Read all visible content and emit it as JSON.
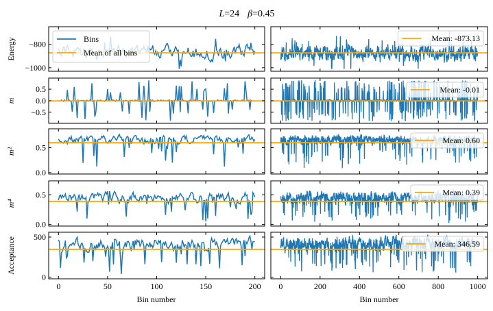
{
  "colors": {
    "series": "#1f77b4",
    "mean": "#ffa500",
    "axes": "#000000",
    "legend_edge": "#cccccc"
  },
  "chart_data": {
    "type": "line",
    "title": "L = 24   β = 0.45",
    "title_parts": {
      "L_symbol": "L",
      "L_value": "24",
      "beta_symbol": "β",
      "beta_value": "0.45"
    },
    "xlabel": "Bin number",
    "left_xlim": [
      -10,
      210
    ],
    "left_xticks": [
      0,
      50,
      100,
      150,
      200
    ],
    "right_xlim": [
      -50,
      1050
    ],
    "right_xticks": [
      0,
      200,
      400,
      600,
      800,
      1000
    ],
    "legend_main": {
      "series": "Bins",
      "mean": "Mean of all bins",
      "location": "upper left"
    },
    "rows": [
      {
        "ylabel": "Energy",
        "ylim": [
          -1030,
          -650
        ],
        "yticks": [
          -1000,
          -800
        ],
        "ytick_labels": [
          "−1000",
          "−800"
        ],
        "mean": -873.13,
        "mean_label": "Mean: -873.13",
        "seed": 11,
        "center": -873,
        "amp": 55,
        "spike_prob": 0.08,
        "spike_amp": 140,
        "bound_lo": -1010,
        "bound_hi": -680,
        "style": "energy"
      },
      {
        "ylabel": "m",
        "ylim": [
          -0.98,
          0.98
        ],
        "yticks": [
          -0.5,
          0.0,
          0.5
        ],
        "ytick_labels": [
          "−0.5",
          "0.0",
          "0.5"
        ],
        "mean": -0.01,
        "mean_label": "Mean: -0.01",
        "seed": 23,
        "center": 0,
        "amp": 0.03,
        "spike_prob": 0.22,
        "spike_amp": 0.85,
        "bound_lo": -0.9,
        "bound_hi": 0.92,
        "style": "magnet"
      },
      {
        "ylabel": "m²",
        "ylim": [
          -0.03,
          0.88
        ],
        "yticks": [
          0.0,
          0.5
        ],
        "ytick_labels": [
          "0.0",
          "0.5"
        ],
        "mean": 0.6,
        "mean_label": "Mean: 0.60",
        "seed": 37,
        "center": 0.66,
        "amp": 0.08,
        "spike_prob": 0.12,
        "spike_amp": 0.5,
        "bound_lo": 0.05,
        "bound_hi": 0.84,
        "style": "down"
      },
      {
        "ylabel": "m⁴",
        "ylim": [
          -0.03,
          0.74
        ],
        "yticks": [
          0.0,
          0.5
        ],
        "ytick_labels": [
          "0.0",
          "0.5"
        ],
        "mean": 0.39,
        "mean_label": "Mean: 0.39",
        "seed": 53,
        "center": 0.45,
        "amp": 0.09,
        "spike_prob": 0.12,
        "spike_amp": 0.38,
        "bound_lo": 0.0,
        "bound_hi": 0.7,
        "style": "down"
      },
      {
        "ylabel": "Acceptance",
        "ylim": [
          -20,
          560
        ],
        "yticks": [
          0,
          500
        ],
        "ytick_labels": [
          "0",
          "500"
        ],
        "mean": 346.59,
        "mean_label": "Mean: 346.59",
        "seed": 71,
        "center": 420,
        "amp": 70,
        "spike_prob": 0.14,
        "spike_amp": 330,
        "bound_lo": 0,
        "bound_hi": 530,
        "style": "down"
      }
    ],
    "left_n_bins": 200,
    "right_n_bins": 1000
  }
}
